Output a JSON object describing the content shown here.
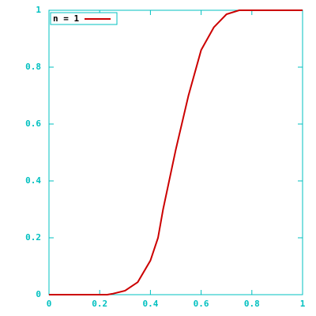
{
  "chart_data": {
    "type": "line",
    "x": [
      0,
      0.2,
      0.23,
      0.25,
      0.3,
      0.35,
      0.4,
      0.43,
      0.45,
      0.5,
      0.55,
      0.6,
      0.65,
      0.7,
      0.75,
      1
    ],
    "series": [
      {
        "name": "n = 1",
        "color": "#cc0000",
        "values": [
          0,
          0,
          0,
          0.003,
          0.014,
          0.044,
          0.12,
          0.2,
          0.3,
          0.51,
          0.7,
          0.86,
          0.94,
          0.986,
          1,
          1
        ]
      }
    ],
    "xlim": [
      0,
      1
    ],
    "ylim": [
      0,
      1
    ],
    "xticks": [
      0,
      0.2,
      0.4,
      0.6,
      0.8,
      1
    ],
    "yticks": [
      0,
      0.2,
      0.4,
      0.6,
      0.8,
      1
    ],
    "axis_color": "#00c0c0",
    "legend": "top-left"
  }
}
